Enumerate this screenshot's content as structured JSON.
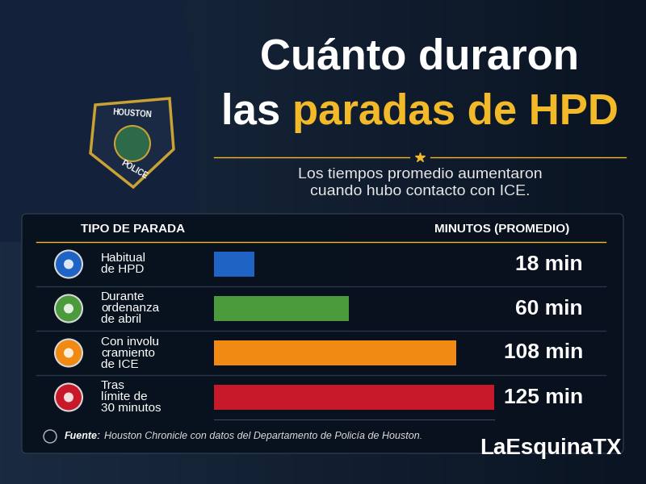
{
  "chart_data": {
    "type": "bar",
    "orientation": "horizontal",
    "title": "Cuánto duraron las paradas de HPD",
    "title_highlight": "paradas de HPD",
    "subtitle": "Los tiempos promedio aumentaron cuando hubo contacto con ICE.",
    "column_headers": [
      "TIPO DE PARADA",
      "MINUTOS (PROMEDIO)"
    ],
    "categories": [
      "Habitual de HPD",
      "Durante ordenanza de abril",
      "Con involucramiento de ICE",
      "Tras límite de 30 minutos"
    ],
    "values": [
      18,
      60,
      108,
      125
    ],
    "value_labels": [
      "18 min",
      "60 min",
      "108 min",
      "125 min"
    ],
    "colors": [
      "#1f63c4",
      "#4b9a3c",
      "#f08a12",
      "#c8192b"
    ],
    "xlim": [
      0,
      125
    ],
    "xticks": [],
    "data_labels": true,
    "tick_labels": false,
    "grid": false,
    "source_label": "Fuente:",
    "source": "Houston Chronicle con datos del Departamento de Policía de Houston.",
    "logo": "LaEsquinaTX",
    "badge_text": [
      "HOUSTON",
      "POLICE"
    ]
  }
}
